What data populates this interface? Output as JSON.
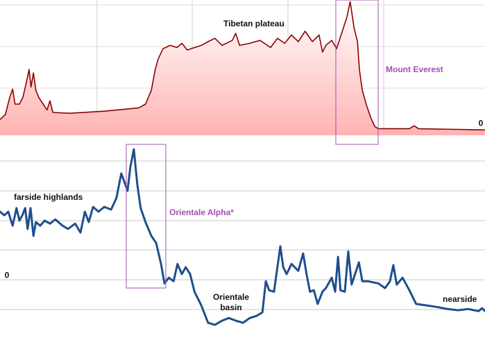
{
  "chart_data": [
    {
      "type": "area",
      "color": "#8b0000",
      "fill": "#ffb3b3",
      "xlim": [
        0,
        100
      ],
      "ylim": [
        -0.13,
        3.12
      ],
      "yticks": [
        0
      ],
      "annotations": [
        "Tibetan plateau",
        "Mount Everest"
      ],
      "x": [
        0,
        1.1,
        2.0,
        2.6,
        3.1,
        4.0,
        4.7,
        5.4,
        6.0,
        6.4,
        6.9,
        7.4,
        8.0,
        8.9,
        9.7,
        10.3,
        10.9,
        14.3,
        21.5,
        28.6,
        30.0,
        31.2,
        32.0,
        32.6,
        33.6,
        35.1,
        36.5,
        37.5,
        38.6,
        41.5,
        42.9,
        44.3,
        45.8,
        47.9,
        48.6,
        49.4,
        51.5,
        53.6,
        55.8,
        57.2,
        58.7,
        60.1,
        61.5,
        62.9,
        64.4,
        65.8,
        66.5,
        67.2,
        68.4,
        69.4,
        70.1,
        70.8,
        71.5,
        72.2,
        73.0,
        73.7,
        74.1,
        74.7,
        75.5,
        76.5,
        77.3,
        78.0,
        84.4,
        85.4,
        86.3,
        100
      ],
      "values": [
        0.25,
        0.37,
        0.78,
        0.98,
        0.62,
        0.62,
        0.78,
        1.12,
        1.45,
        1.03,
        1.37,
        0.95,
        0.78,
        0.62,
        0.48,
        0.7,
        0.42,
        0.4,
        0.45,
        0.53,
        0.62,
        0.95,
        1.45,
        1.7,
        1.95,
        2.03,
        1.98,
        2.08,
        1.92,
        2.03,
        2.12,
        2.2,
        2.03,
        2.15,
        2.32,
        2.03,
        2.08,
        2.15,
        1.98,
        2.2,
        2.08,
        2.28,
        2.12,
        2.37,
        2.12,
        2.28,
        1.87,
        2.03,
        2.15,
        1.95,
        2.2,
        2.45,
        2.7,
        3.08,
        2.45,
        2.12,
        1.45,
        0.95,
        0.62,
        0.28,
        0.08,
        0.03,
        0.03,
        0.1,
        0.03,
        0
      ]
    },
    {
      "type": "line",
      "color": "#1f4e8c",
      "xlim": [
        0,
        100
      ],
      "ylim": [
        -1.95,
        4.72
      ],
      "yticks": [
        0
      ],
      "annotations": [
        "farside highlands",
        "Orientale Alpha*",
        "Orientale basin",
        "nearside"
      ],
      "x": [
        0,
        0.9,
        1.7,
        2.6,
        3.4,
        4.0,
        4.6,
        5.2,
        5.7,
        6.3,
        6.9,
        7.4,
        8.3,
        9.2,
        10.3,
        11.4,
        12.9,
        14.0,
        15.5,
        16.6,
        17.5,
        18.3,
        19.2,
        20.3,
        21.5,
        22.9,
        24.0,
        25.0,
        25.8,
        26.3,
        26.9,
        27.6,
        28.3,
        29.0,
        30.0,
        31.2,
        32.2,
        33.2,
        33.9,
        34.8,
        35.8,
        36.6,
        37.5,
        38.3,
        39.2,
        40.1,
        41.5,
        42.9,
        44.3,
        45.8,
        47.2,
        48.6,
        50.1,
        51.5,
        52.9,
        54.1,
        54.8,
        55.5,
        56.5,
        57.8,
        58.4,
        59.1,
        60.1,
        61.5,
        62.5,
        63.2,
        63.9,
        64.7,
        65.5,
        66.5,
        67.2,
        68.4,
        69.1,
        69.7,
        70.2,
        71.1,
        71.8,
        72.5,
        73.2,
        74.0,
        74.7,
        75.8,
        78.0,
        79.4,
        80.4,
        81.1,
        81.8,
        83.0,
        84.4,
        85.8,
        88.0,
        90.1,
        92.3,
        94.4,
        96.6,
        98.7,
        99.4,
        100
      ],
      "values": [
        2.28,
        2.16,
        2.28,
        1.81,
        2.4,
        1.98,
        2.16,
        2.4,
        1.7,
        2.4,
        1.47,
        1.93,
        1.81,
        1.98,
        1.88,
        2.02,
        1.81,
        1.7,
        1.88,
        1.58,
        2.28,
        1.93,
        2.44,
        2.28,
        2.44,
        2.35,
        2.74,
        3.56,
        3.21,
        2.98,
        3.79,
        4.37,
        3.21,
        2.4,
        1.93,
        1.47,
        1.23,
        0.53,
        -0.12,
        0.07,
        -0.05,
        0.53,
        0.19,
        0.42,
        0.19,
        -0.4,
        -0.86,
        -1.44,
        -1.51,
        -1.37,
        -1.28,
        -1.37,
        -1.44,
        -1.28,
        -1.21,
        -1.09,
        -0.05,
        -0.35,
        -0.4,
        1.12,
        0.42,
        0.19,
        0.53,
        0.3,
        0.88,
        0.19,
        -0.4,
        -0.35,
        -0.81,
        -0.4,
        -0.28,
        0.07,
        -0.4,
        0.77,
        -0.35,
        -0.4,
        0.95,
        -0.16,
        0.19,
        0.58,
        -0.05,
        -0.05,
        -0.12,
        -0.28,
        -0.05,
        0.49,
        -0.16,
        0.07,
        -0.35,
        -0.81,
        -0.86,
        -0.91,
        -0.98,
        -1.02,
        -0.98,
        -1.05,
        -0.95,
        -1.05
      ]
    }
  ]
}
